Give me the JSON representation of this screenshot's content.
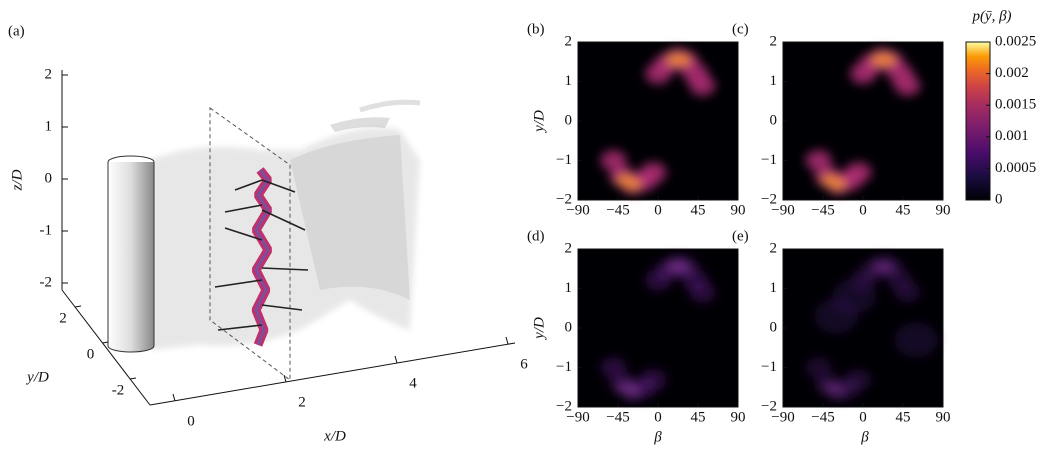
{
  "panel_a": {
    "label": "(a)",
    "x_label": "x/D",
    "y_label": "y/D",
    "z_label": "z/D",
    "x_ticks": [
      0,
      2,
      4,
      6
    ],
    "y_ticks": [
      2,
      0,
      -2
    ],
    "z_ticks": [
      2,
      1,
      0,
      -1,
      -2
    ]
  },
  "heatmaps": {
    "panels": [
      {
        "label": "(b)"
      },
      {
        "label": "(c)"
      },
      {
        "label": "(d)"
      },
      {
        "label": "(e)"
      }
    ],
    "x_label": "β",
    "y_label": "y/D",
    "x_ticks": [
      {
        "value": -90,
        "label": "−90"
      },
      {
        "value": -45,
        "label": "−45"
      },
      0,
      45,
      90
    ],
    "y_ticks": [
      2,
      1,
      0,
      {
        "value": -1,
        "label": "−1"
      },
      {
        "value": -2,
        "label": "−2"
      }
    ]
  },
  "colorbar": {
    "title": "p(ȳ, β)",
    "ticks": [
      0.0025,
      0.002,
      0.0015,
      0.001,
      0.0005,
      0
    ]
  }
}
